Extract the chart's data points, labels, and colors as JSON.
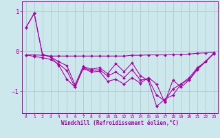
{
  "xlabel": "Windchill (Refroidissement éolien,°C)",
  "background_color": "#cce8ec",
  "grid_color": "#b0d0d4",
  "line_color": "#aa00aa",
  "xlim": [
    -0.5,
    23.5
  ],
  "ylim": [
    -1.55,
    1.25
  ],
  "yticks": [
    -1,
    0,
    1
  ],
  "xticks": [
    0,
    1,
    2,
    3,
    4,
    5,
    6,
    7,
    8,
    9,
    10,
    11,
    12,
    13,
    14,
    15,
    16,
    17,
    18,
    19,
    20,
    21,
    22,
    23
  ],
  "series": [
    [
      0.6,
      0.95,
      -0.08,
      -0.14,
      -0.35,
      -0.7,
      -0.9,
      -0.43,
      -0.52,
      -0.5,
      -0.75,
      -0.7,
      -0.82,
      -0.66,
      -0.8,
      -0.66,
      -0.82,
      -1.28,
      -0.72,
      -0.9,
      -0.72,
      -0.46,
      -0.26,
      -0.06
    ],
    [
      0.6,
      0.95,
      -0.08,
      -0.14,
      -0.26,
      -0.36,
      -0.84,
      -0.38,
      -0.45,
      -0.41,
      -0.56,
      -0.31,
      -0.51,
      -0.29,
      -0.61,
      -0.74,
      -1.38,
      -1.2,
      -1.1,
      -0.82,
      -0.66,
      -0.41,
      -0.26,
      -0.06
    ],
    [
      -0.09,
      -0.09,
      -0.1,
      -0.12,
      -0.12,
      -0.12,
      -0.12,
      -0.12,
      -0.12,
      -0.12,
      -0.12,
      -0.12,
      -0.12,
      -0.1,
      -0.1,
      -0.09,
      -0.09,
      -0.09,
      -0.08,
      -0.08,
      -0.07,
      -0.05,
      -0.04,
      -0.03
    ],
    [
      -0.09,
      -0.13,
      -0.16,
      -0.2,
      -0.32,
      -0.48,
      -0.9,
      -0.41,
      -0.48,
      -0.46,
      -0.62,
      -0.52,
      -0.66,
      -0.46,
      -0.72,
      -0.7,
      -1.1,
      -1.24,
      -0.94,
      -0.82,
      -0.7,
      -0.44,
      -0.25,
      -0.05
    ]
  ]
}
